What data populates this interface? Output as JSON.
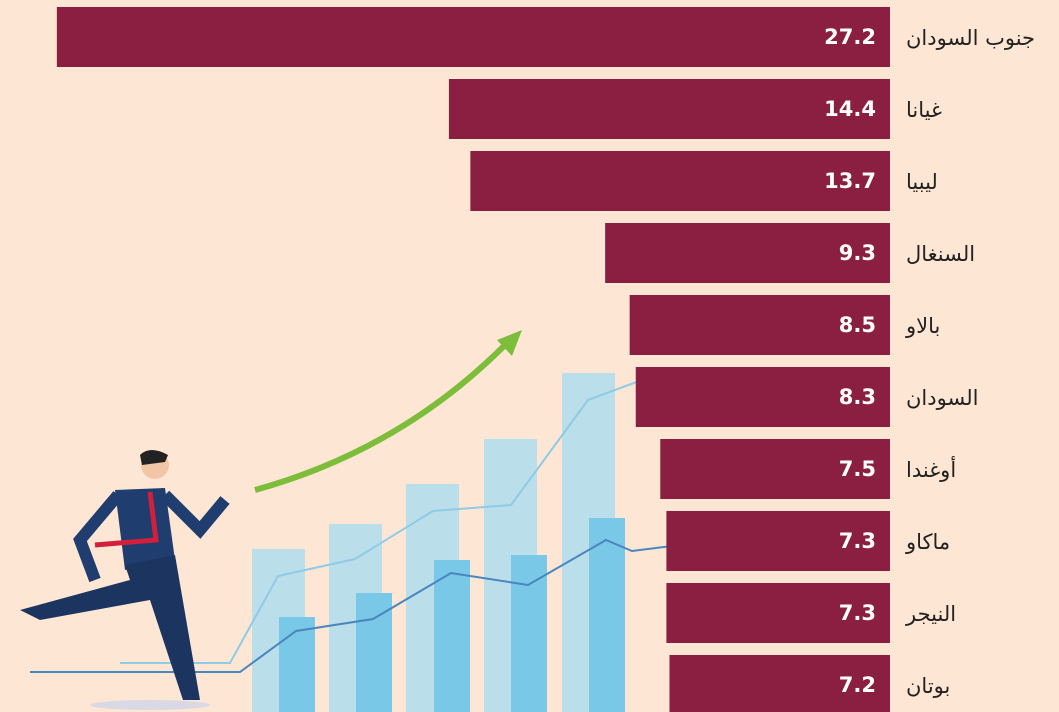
{
  "chart_data": {
    "type": "bar",
    "orientation": "horizontal",
    "color": "#8b1f41",
    "categories": [
      "جنوب السودان",
      "غيانا",
      "ليبيا",
      "السنغال",
      "بالاو",
      "السودان",
      "أوغندا",
      "ماكاو",
      "النيجر",
      "بوتان"
    ],
    "values": [
      27.2,
      14.4,
      13.7,
      9.3,
      8.5,
      8.3,
      7.5,
      7.3,
      7.3,
      7.2
    ]
  }
}
